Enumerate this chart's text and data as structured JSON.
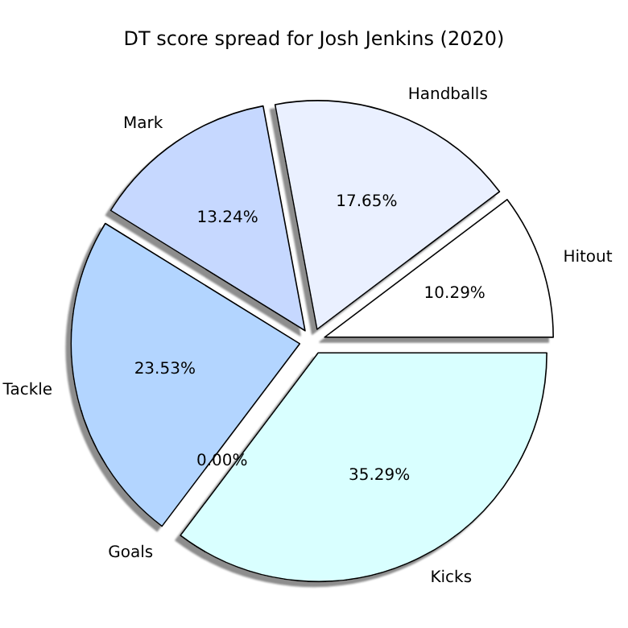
{
  "chart_data": {
    "type": "pie",
    "title": "DT score spread for Josh Jenkins (2020)",
    "categories": [
      "Hitout",
      "Handballs",
      "Mark",
      "Tackle",
      "Goals",
      "Kicks"
    ],
    "values": [
      10.29,
      17.65,
      13.24,
      23.53,
      0,
      35.29
    ],
    "value_labels": [
      "10.29%",
      "17.65%",
      "13.24%",
      "23.53%",
      "0.00%",
      "35.29%"
    ],
    "colors": [
      "#ffffff",
      "#eaf0ff",
      "#c6d8ff",
      "#b3d5ff",
      null,
      "#d9ffff"
    ]
  }
}
